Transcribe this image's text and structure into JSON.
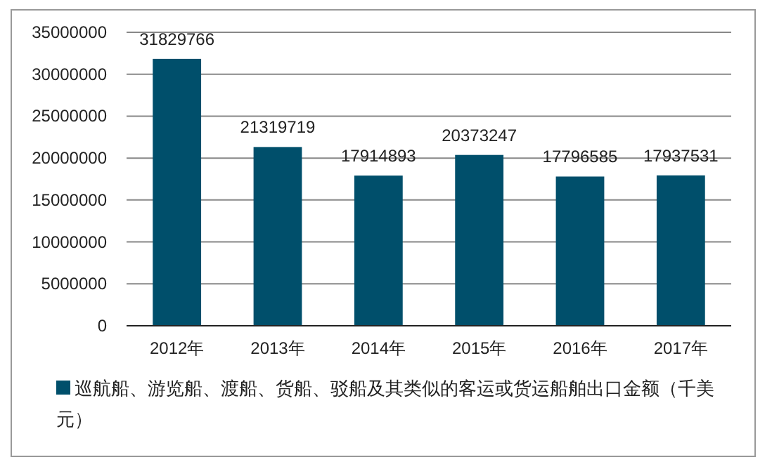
{
  "chart_data": {
    "type": "bar",
    "categories": [
      "2012年",
      "2013年",
      "2014年",
      "2015年",
      "2016年",
      "2017年"
    ],
    "series": [
      {
        "name": "巡航船、游览船、渡船、货船、驳船及其类似的客运或货运船舶出口金额（千美元）",
        "color": "#004f6b",
        "values": [
          31829766,
          21319719,
          17914893,
          20373247,
          17796585,
          17937531
        ]
      }
    ],
    "ylim": [
      0,
      35000000
    ],
    "yticks": [
      0,
      5000000,
      10000000,
      15000000,
      20000000,
      25000000,
      30000000,
      35000000
    ],
    "grid": "y",
    "legend": "bottom",
    "data_labels": true
  }
}
